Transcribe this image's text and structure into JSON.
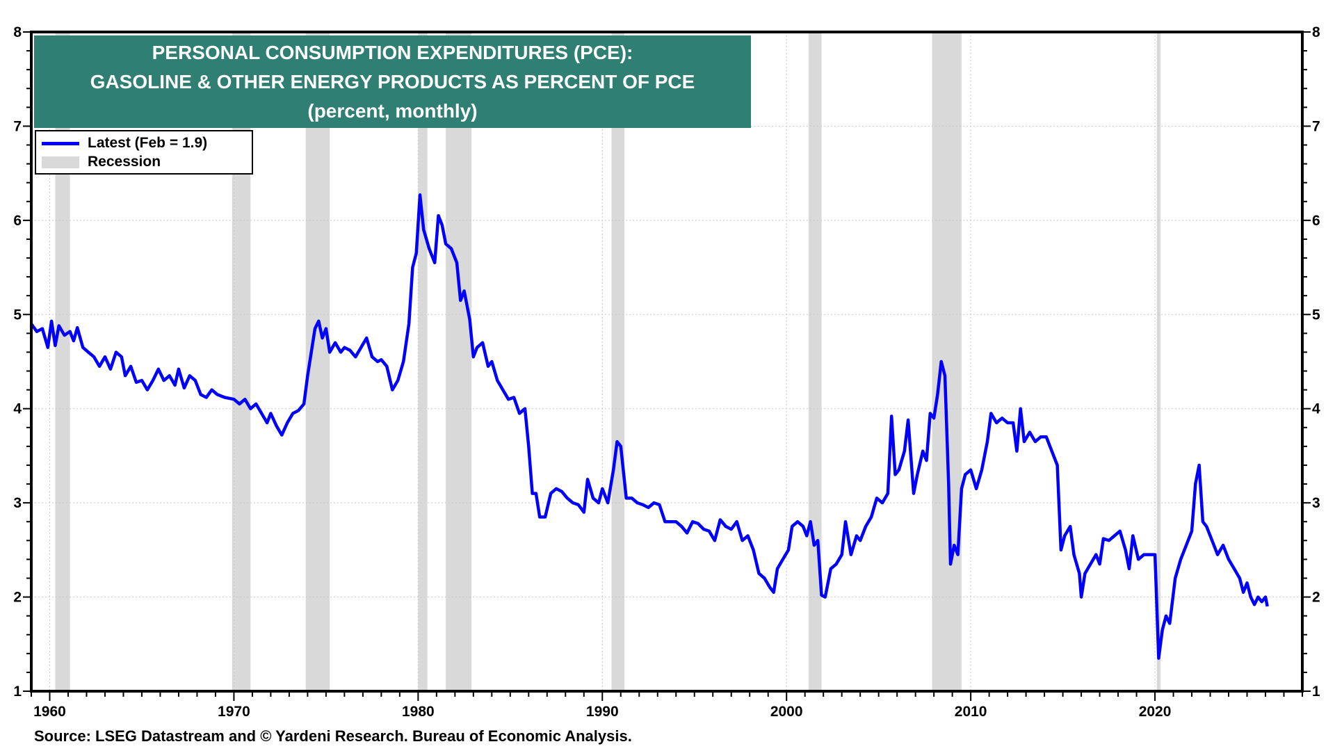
{
  "chart_data": {
    "type": "line",
    "title": "PERSONAL CONSUMPTION EXPENDITURES (PCE):",
    "subtitle": "GASOLINE & OTHER ENERGY PRODUCTS AS PERCENT OF PCE",
    "units_note": "(percent, monthly)",
    "xlabel": "",
    "ylabel": "",
    "xlim": [
      1959,
      2028
    ],
    "ylim": [
      1,
      8
    ],
    "x_ticks": [
      "1960",
      "1970",
      "1980",
      "1990",
      "2000",
      "2010",
      "2020"
    ],
    "y_ticks": [
      "1",
      "2",
      "3",
      "4",
      "5",
      "6",
      "7",
      "8"
    ],
    "grid": true,
    "legend_placement": "top-left",
    "legend": [
      "Latest (Feb = 1.9)",
      "Recession"
    ],
    "colors": {
      "series": "#0000ff",
      "recession": "#d9d9d9",
      "title_bg": "#2f7f73"
    },
    "recessions": [
      [
        1960.3,
        1961.1
      ],
      [
        1969.9,
        1970.9
      ],
      [
        1973.9,
        1975.2
      ],
      [
        1980.0,
        1980.5
      ],
      [
        1981.5,
        1982.9
      ],
      [
        1990.5,
        1991.2
      ],
      [
        2001.2,
        2001.9
      ],
      [
        2007.9,
        2009.5
      ],
      [
        2020.1,
        2020.3
      ]
    ],
    "series": [
      {
        "name": "Latest (Feb = 1.9)",
        "x": [
          1959.0,
          1959.3,
          1959.6,
          1959.9,
          1960.1,
          1960.3,
          1960.5,
          1960.8,
          1961.1,
          1961.3,
          1961.5,
          1961.8,
          1962.1,
          1962.4,
          1962.7,
          1963.0,
          1963.3,
          1963.6,
          1963.9,
          1964.1,
          1964.4,
          1964.7,
          1965.0,
          1965.3,
          1965.6,
          1965.9,
          1966.2,
          1966.5,
          1966.8,
          1967.0,
          1967.3,
          1967.6,
          1967.9,
          1968.2,
          1968.5,
          1968.8,
          1969.1,
          1969.5,
          1970.0,
          1970.3,
          1970.6,
          1970.9,
          1971.2,
          1971.5,
          1971.8,
          1972.0,
          1972.3,
          1972.6,
          1972.9,
          1973.2,
          1973.5,
          1973.8,
          1974.0,
          1974.2,
          1974.4,
          1974.6,
          1974.8,
          1975.0,
          1975.2,
          1975.5,
          1975.8,
          1976.0,
          1976.3,
          1976.6,
          1976.9,
          1977.2,
          1977.5,
          1977.8,
          1978.0,
          1978.3,
          1978.6,
          1978.9,
          1979.2,
          1979.5,
          1979.7,
          1979.9,
          1980.1,
          1980.3,
          1980.6,
          1980.9,
          1981.1,
          1981.3,
          1981.5,
          1981.8,
          1982.1,
          1982.3,
          1982.5,
          1982.8,
          1983.0,
          1983.2,
          1983.5,
          1983.8,
          1984.0,
          1984.3,
          1984.6,
          1984.9,
          1985.2,
          1985.5,
          1985.8,
          1986.0,
          1986.2,
          1986.4,
          1986.6,
          1986.9,
          1987.2,
          1987.5,
          1987.8,
          1988.1,
          1988.4,
          1988.7,
          1989.0,
          1989.2,
          1989.5,
          1989.8,
          1990.0,
          1990.3,
          1990.6,
          1990.8,
          1991.0,
          1991.3,
          1991.6,
          1991.9,
          1992.2,
          1992.5,
          1992.8,
          1993.1,
          1993.4,
          1993.7,
          1994.0,
          1994.3,
          1994.6,
          1994.9,
          1995.2,
          1995.5,
          1995.8,
          1996.1,
          1996.4,
          1996.7,
          1997.0,
          1997.3,
          1997.6,
          1997.9,
          1998.2,
          1998.5,
          1998.8,
          1999.1,
          1999.3,
          1999.5,
          1999.8,
          2000.1,
          2000.3,
          2000.6,
          2000.9,
          2001.1,
          2001.3,
          2001.5,
          2001.7,
          2001.9,
          2002.1,
          2002.4,
          2002.7,
          2003.0,
          2003.2,
          2003.5,
          2003.8,
          2004.0,
          2004.3,
          2004.6,
          2004.9,
          2005.2,
          2005.5,
          2005.7,
          2005.9,
          2006.1,
          2006.4,
          2006.6,
          2006.9,
          2007.1,
          2007.4,
          2007.6,
          2007.8,
          2008.0,
          2008.2,
          2008.4,
          2008.6,
          2008.8,
          2008.9,
          2009.1,
          2009.3,
          2009.5,
          2009.7,
          2010.0,
          2010.3,
          2010.6,
          2010.9,
          2011.1,
          2011.4,
          2011.7,
          2012.0,
          2012.3,
          2012.5,
          2012.7,
          2012.9,
          2013.2,
          2013.5,
          2013.8,
          2014.1,
          2014.4,
          2014.7,
          2014.9,
          2015.1,
          2015.4,
          2015.6,
          2015.9,
          2016.0,
          2016.2,
          2016.5,
          2016.8,
          2017.0,
          2017.2,
          2017.5,
          2017.8,
          2018.1,
          2018.4,
          2018.6,
          2018.8,
          2019.1,
          2019.4,
          2019.7,
          2020.0,
          2020.2,
          2020.4,
          2020.6,
          2020.8,
          2021.1,
          2021.4,
          2021.7,
          2022.0,
          2022.2,
          2022.4,
          2022.6,
          2022.8,
          2023.1,
          2023.4,
          2023.7,
          2024.0,
          2024.3,
          2024.6,
          2024.8,
          2025.0,
          2025.2,
          2025.4,
          2025.6,
          2025.8,
          2026.0,
          2026.1
        ],
        "y": [
          4.9,
          4.82,
          4.85,
          4.65,
          4.93,
          4.67,
          4.88,
          4.78,
          4.82,
          4.72,
          4.86,
          4.65,
          4.6,
          4.55,
          4.45,
          4.55,
          4.42,
          4.6,
          4.55,
          4.35,
          4.45,
          4.28,
          4.3,
          4.2,
          4.3,
          4.42,
          4.3,
          4.35,
          4.25,
          4.42,
          4.22,
          4.35,
          4.3,
          4.15,
          4.12,
          4.2,
          4.15,
          4.12,
          4.1,
          4.05,
          4.1,
          4.0,
          4.05,
          3.95,
          3.85,
          3.95,
          3.82,
          3.72,
          3.85,
          3.95,
          3.98,
          4.05,
          4.35,
          4.6,
          4.85,
          4.93,
          4.75,
          4.85,
          4.6,
          4.7,
          4.6,
          4.65,
          4.62,
          4.55,
          4.65,
          4.75,
          4.55,
          4.5,
          4.52,
          4.45,
          4.2,
          4.3,
          4.5,
          4.9,
          5.5,
          5.65,
          6.27,
          5.9,
          5.7,
          5.55,
          6.05,
          5.95,
          5.75,
          5.7,
          5.55,
          5.15,
          5.25,
          4.95,
          4.55,
          4.65,
          4.7,
          4.45,
          4.5,
          4.3,
          4.2,
          4.1,
          4.12,
          3.95,
          4.0,
          3.6,
          3.1,
          3.1,
          2.85,
          2.85,
          3.1,
          3.15,
          3.12,
          3.05,
          3.0,
          2.98,
          2.9,
          3.25,
          3.05,
          3.0,
          3.15,
          3.0,
          3.35,
          3.65,
          3.6,
          3.05,
          3.05,
          3.0,
          2.98,
          2.95,
          3.0,
          2.98,
          2.8,
          2.8,
          2.8,
          2.75,
          2.68,
          2.8,
          2.78,
          2.72,
          2.7,
          2.6,
          2.82,
          2.75,
          2.72,
          2.8,
          2.6,
          2.65,
          2.5,
          2.25,
          2.2,
          2.1,
          2.05,
          2.3,
          2.4,
          2.5,
          2.75,
          2.8,
          2.75,
          2.65,
          2.8,
          2.55,
          2.6,
          2.02,
          2.0,
          2.3,
          2.35,
          2.45,
          2.8,
          2.45,
          2.65,
          2.6,
          2.75,
          2.85,
          3.05,
          3.0,
          3.1,
          3.92,
          3.3,
          3.35,
          3.55,
          3.88,
          3.1,
          3.3,
          3.55,
          3.45,
          3.95,
          3.9,
          4.15,
          4.5,
          4.35,
          3.2,
          2.35,
          2.55,
          2.45,
          3.15,
          3.3,
          3.35,
          3.15,
          3.35,
          3.65,
          3.95,
          3.85,
          3.9,
          3.85,
          3.85,
          3.55,
          4.0,
          3.65,
          3.75,
          3.65,
          3.7,
          3.7,
          3.55,
          3.4,
          2.5,
          2.65,
          2.75,
          2.45,
          2.25,
          2.0,
          2.25,
          2.35,
          2.45,
          2.35,
          2.62,
          2.6,
          2.65,
          2.7,
          2.5,
          2.3,
          2.65,
          2.4,
          2.45,
          2.45,
          2.45,
          1.35,
          1.65,
          1.8,
          1.72,
          2.2,
          2.4,
          2.55,
          2.7,
          3.2,
          3.4,
          2.8,
          2.75,
          2.6,
          2.45,
          2.55,
          2.4,
          2.3,
          2.2,
          2.05,
          2.15,
          2.0,
          1.92,
          2.0,
          1.95,
          2.0,
          1.9
        ]
      }
    ]
  },
  "title": {
    "line1": "PERSONAL CONSUMPTION EXPENDITURES (PCE):",
    "line2": "GASOLINE & OTHER ENERGY PRODUCTS AS PERCENT OF PCE",
    "line3": "(percent, monthly)"
  },
  "legend": {
    "latest": "Latest (Feb = 1.9)",
    "recession": "Recession"
  },
  "source": "Source: LSEG Datastream and © Yardeni Research. Bureau of Economic Analysis."
}
